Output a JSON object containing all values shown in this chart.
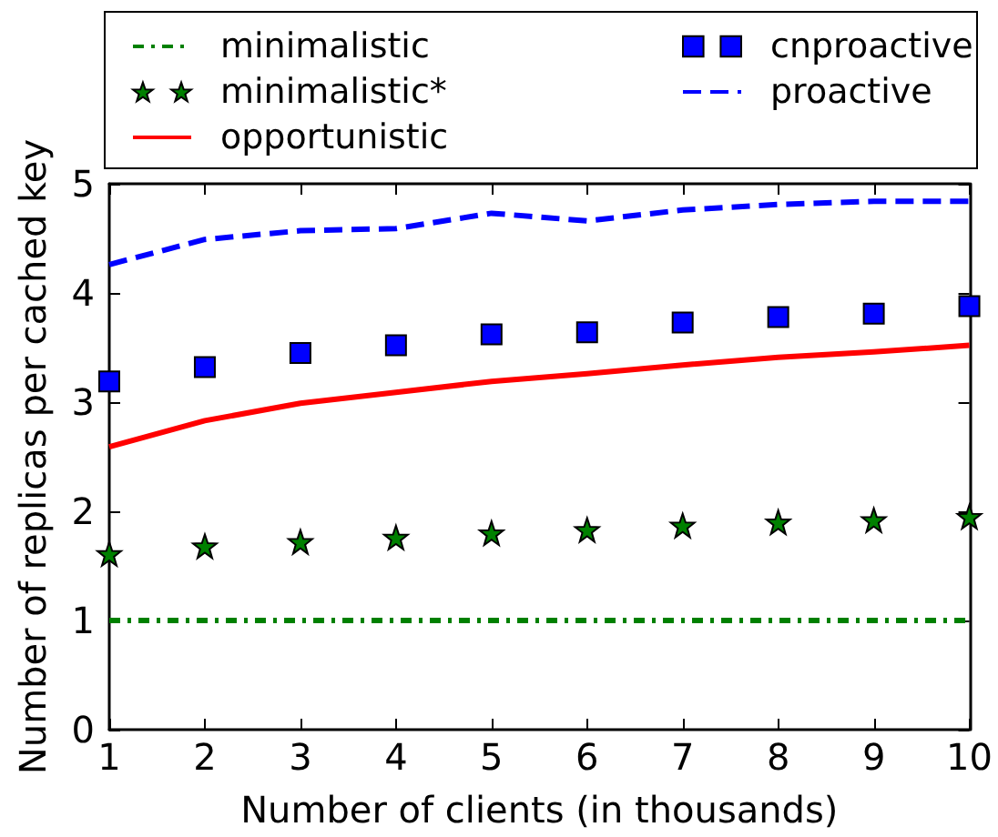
{
  "chart_data": {
    "type": "line",
    "xlabel": "Number of clients (in thousands)",
    "ylabel": "Number of replicas per cached key",
    "x": [
      1,
      2,
      3,
      4,
      5,
      6,
      7,
      8,
      9,
      10
    ],
    "xlim": [
      1,
      10
    ],
    "xticks": [
      1,
      2,
      3,
      4,
      5,
      6,
      7,
      8,
      9,
      10
    ],
    "ylim": [
      0,
      5
    ],
    "yticks": [
      0,
      1,
      2,
      3,
      4,
      5
    ],
    "grid": false,
    "legend": "top",
    "series": [
      {
        "name": "minimalistic",
        "color": "#008000",
        "line_style": "dashdot",
        "marker": "none",
        "values": [
          1,
          1,
          1,
          1,
          1,
          1,
          1,
          1,
          1,
          1
        ]
      },
      {
        "name": "minimalistic*",
        "type": "scatter",
        "color": "#008000",
        "marker": "star",
        "values": [
          1.61,
          1.68,
          1.72,
          1.76,
          1.8,
          1.83,
          1.87,
          1.9,
          1.92,
          1.95
        ]
      },
      {
        "name": "opportunistic",
        "color": "#ff0000",
        "line_style": "solid",
        "marker": "none",
        "values": [
          2.59,
          2.83,
          2.99,
          3.09,
          3.19,
          3.26,
          3.34,
          3.41,
          3.46,
          3.52
        ]
      },
      {
        "name": "cnproactive",
        "type": "scatter",
        "color": "#0000ff",
        "marker": "square",
        "values": [
          3.19,
          3.32,
          3.45,
          3.52,
          3.62,
          3.64,
          3.73,
          3.78,
          3.81,
          3.88
        ]
      },
      {
        "name": "proactive",
        "color": "#0000ff",
        "line_style": "dashed",
        "marker": "none",
        "values": [
          4.26,
          4.49,
          4.57,
          4.59,
          4.73,
          4.66,
          4.76,
          4.81,
          4.84,
          4.84
        ]
      }
    ]
  }
}
